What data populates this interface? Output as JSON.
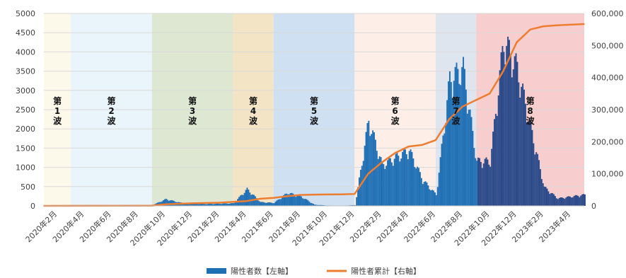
{
  "chart_data": {
    "type": "bar+line",
    "legend_position": "bottom",
    "grid": true,
    "y_left": {
      "ylim": [
        0,
        5000
      ],
      "ticks": [
        "0",
        "500",
        "1000",
        "1500",
        "2000",
        "2500",
        "3000",
        "3500",
        "4000",
        "4500",
        "5000"
      ]
    },
    "y_right": {
      "ylim": [
        0,
        600000
      ],
      "ticks": [
        "0",
        "100,000",
        "200,000",
        "300,000",
        "400,000",
        "500,000",
        "600,000"
      ]
    },
    "x_ticks": [
      "2020年2月",
      "2020年4月",
      "2020年6月",
      "2020年8月",
      "2020年10月",
      "2020年12月",
      "2021年2月",
      "2021年4月",
      "2021年6月",
      "2021年8月",
      "2021年10月",
      "2021年12月",
      "2022年2月",
      "2022年4月",
      "2022年6月",
      "2022年8月",
      "2022年10月",
      "2022年12月",
      "2023年2月",
      "2023年4月"
    ],
    "x_range": [
      "2020-01",
      "2023-05"
    ],
    "waves": [
      {
        "label": "第1波",
        "chars": [
          "第",
          "1",
          "波"
        ],
        "start": "2020-01",
        "end": "2020-03",
        "color": "#fdf9ea"
      },
      {
        "label": "第2波",
        "chars": [
          "第",
          "2",
          "波"
        ],
        "start": "2020-03",
        "end": "2020-09",
        "color": "#eaf4fb"
      },
      {
        "label": "第3波",
        "chars": [
          "第",
          "3",
          "波"
        ],
        "start": "2020-09",
        "end": "2021-03",
        "color": "#dde7d2"
      },
      {
        "label": "第4波",
        "chars": [
          "第",
          "4",
          "波"
        ],
        "start": "2021-03",
        "end": "2021-06",
        "color": "#f2e4c4"
      },
      {
        "label": "第5波",
        "chars": [
          "第",
          "5",
          "波"
        ],
        "start": "2021-06",
        "end": "2021-12",
        "color": "#cfe0f2"
      },
      {
        "label": "第6波",
        "chars": [
          "第",
          "6",
          "波"
        ],
        "start": "2021-12",
        "end": "2022-06",
        "color": "#fdefe8"
      },
      {
        "label": "第7波",
        "chars": [
          "第",
          "7",
          "波"
        ],
        "start": "2022-06",
        "end": "2022-09",
        "color": "#dfe5ee"
      },
      {
        "label": "第8波",
        "chars": [
          "第",
          "8",
          "波"
        ],
        "start": "2022-09",
        "end": "2023-05",
        "color": "#f8cdcd"
      }
    ],
    "series": [
      {
        "name": "陽性者数【左軸】",
        "axis": "left",
        "kind": "bar",
        "color": "#1f6fb5",
        "color_wave8": "#2a4a8a",
        "x": [
          "2020-01",
          "2020-06",
          "2020-09",
          "2020-10",
          "2020-11",
          "2020-12",
          "2021-01",
          "2021-02",
          "2021-03",
          "2021-04",
          "2021-05",
          "2021-06",
          "2021-07",
          "2021-08",
          "2021-09",
          "2021-10",
          "2021-11",
          "2021-12",
          "2022-01",
          "2022-02",
          "2022-03",
          "2022-04",
          "2022-05",
          "2022-06",
          "2022-07",
          "2022-08",
          "2022-09",
          "2022-10",
          "2022-11",
          "2022-12",
          "2023-01",
          "2023-02",
          "2023-03",
          "2023-04",
          "2023-05"
        ],
        "values": [
          0,
          5,
          20,
          180,
          90,
          60,
          50,
          60,
          70,
          450,
          100,
          80,
          350,
          250,
          30,
          10,
          5,
          20,
          2300,
          1100,
          1300,
          1500,
          700,
          300,
          3400,
          3700,
          1200,
          1200,
          4450,
          3700,
          2100,
          500,
          200,
          250,
          300
        ]
      },
      {
        "name": "陽性者累計【右軸】",
        "axis": "right",
        "kind": "line",
        "color": "#ed7d31",
        "x": [
          "2020-01",
          "2020-09",
          "2020-10",
          "2020-12",
          "2021-02",
          "2021-04",
          "2021-05",
          "2021-06",
          "2021-07",
          "2021-08",
          "2021-09",
          "2021-10",
          "2021-11",
          "2021-12",
          "2022-01",
          "2022-02",
          "2022-03",
          "2022-04",
          "2022-05",
          "2022-06",
          "2022-07",
          "2022-08",
          "2022-09",
          "2022-10",
          "2022-11",
          "2022-12",
          "2023-01",
          "2023-02",
          "2023-03",
          "2023-04",
          "2023-05"
        ],
        "values": [
          0,
          500,
          5000,
          8000,
          10000,
          15000,
          22000,
          25000,
          30000,
          34000,
          35000,
          35500,
          36000,
          37000,
          100000,
          135000,
          165000,
          185000,
          190000,
          205000,
          270000,
          310000,
          330000,
          350000,
          420000,
          510000,
          550000,
          560000,
          563000,
          565000,
          567000
        ]
      }
    ]
  }
}
